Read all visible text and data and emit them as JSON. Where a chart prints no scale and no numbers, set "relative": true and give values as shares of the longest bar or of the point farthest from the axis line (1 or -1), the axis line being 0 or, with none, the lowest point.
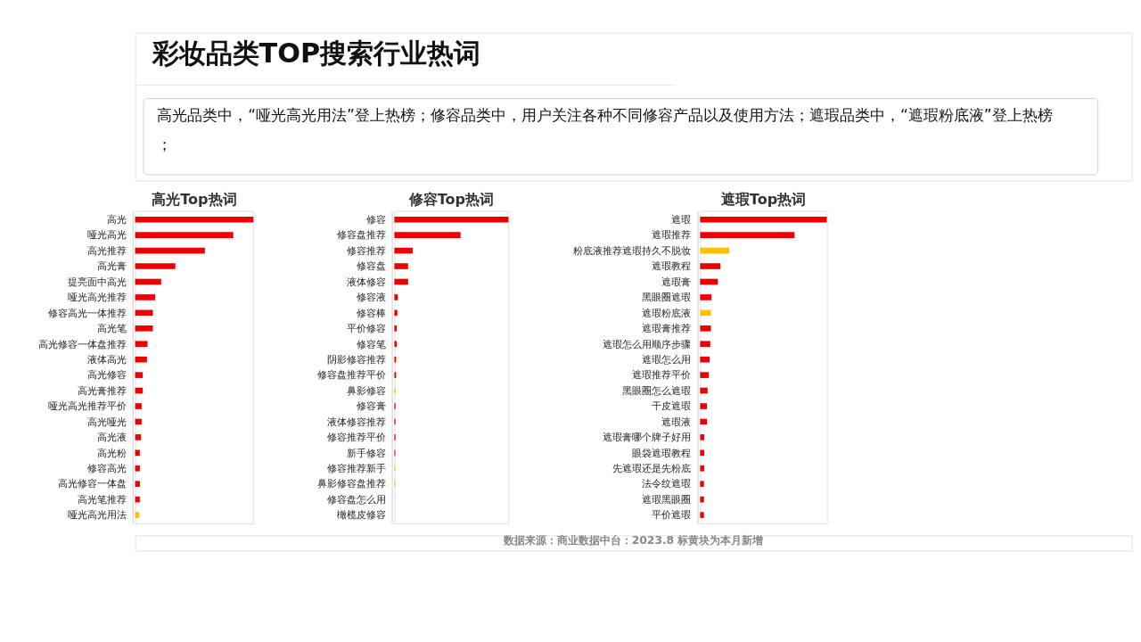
{
  "chart_data": [
    {
      "type": "other",
      "title": "彩妆品类TOP搜索行业热词",
      "subtitle": "高光品类中，“哑光高光用法”登上热榜；修容品类中，用户关注各种不同修容产品以及使用方法；遮瑕品类中，“遮瑕粉底液”登上热榜；",
      "annotations": [
        "数据来源：商业数据中台：2023.8 标黄块为本月新增"
      ]
    },
    {
      "type": "bar",
      "orientation": "horizontal",
      "relative": true,
      "title": "高光Top热词",
      "categories": [
        "高光",
        "哑光高光",
        "高光推荐",
        "高光膏",
        "提亮面中高光",
        "哑光高光推荐",
        "修容高光一体推荐",
        "高光笔",
        "高光修容一体盘推荐",
        "液体高光",
        "高光修容",
        "高光膏推荐",
        "哑光高光推荐平价",
        "高光哑光",
        "高光液",
        "高光粉",
        "修容高光",
        "高光修容一体盘",
        "高光笔推荐",
        "哑光高光用法"
      ],
      "values": [
        1,
        0.83,
        0.59,
        0.34,
        0.22,
        0.17,
        0.15,
        0.15,
        0.105,
        0.1,
        0.065,
        0.065,
        0.055,
        0.055,
        0.05,
        0.04,
        0.04,
        0.04,
        0.04,
        0.035
      ],
      "colors": [
        "#ee0000",
        "#ee0000",
        "#ee0000",
        "#ee0000",
        "#ee0000",
        "#ee0000",
        "#ee0000",
        "#ee0000",
        "#ee0000",
        "#ee0000",
        "#ee0000",
        "#ee0000",
        "#ee0000",
        "#ee0000",
        "#ee0000",
        "#ee0000",
        "#ee0000",
        "#ee0000",
        "#ee0000",
        "#ffc000"
      ]
    },
    {
      "type": "bar",
      "orientation": "horizontal",
      "relative": true,
      "title": "修容Top热词",
      "categories": [
        "修容",
        "修容盘推荐",
        "修容推荐",
        "修容盘",
        "液体修容",
        "修容液",
        "修容棒",
        "平价修容",
        "修容笔",
        "阴影修容推荐",
        "修容盘推荐平价",
        "鼻影修容",
        "修容膏",
        "液体修容推荐",
        "修容推荐平价",
        "新手修容",
        "修容推荐新手",
        "鼻影修容盘推荐",
        "修容盘怎么用",
        "橄榄皮修容"
      ],
      "values": [
        1,
        0.58,
        0.16,
        0.12,
        0.12,
        0.03,
        0.026,
        0.02,
        0.02,
        0.015,
        0.015,
        0.01,
        0.01,
        0.01,
        0.01,
        0.008,
        0.008,
        0.008,
        null,
        null
      ],
      "colors": [
        "#ee0000",
        "#ee0000",
        "#ee0000",
        "#ee0000",
        "#ee0000",
        "#ee0000",
        "#ee0000",
        "#ee0000",
        "#ee0000",
        "#ee0000",
        "#ee0000",
        "#ffc000",
        "#ee0000",
        "#ee0000",
        "#ee0000",
        "#ee0000",
        "#ffc000",
        "#ffc000",
        "#ee0000",
        "#ee0000"
      ]
    },
    {
      "type": "bar",
      "orientation": "horizontal",
      "relative": true,
      "title": "遮瑕Top热词",
      "categories": [
        "遮瑕",
        "遮瑕推荐",
        "粉底液推荐遮瑕持久不脱妆",
        "遮瑕教程",
        "遮瑕膏",
        "黑眼圈遮瑕",
        "遮瑕粉底液",
        "遮瑕膏推荐",
        "遮瑕怎么用顺序步骤",
        "遮瑕怎么用",
        "遮瑕推荐平价",
        "黑眼圈怎么遮瑕",
        "干皮遮瑕",
        "遮瑕液",
        "遮瑕膏哪个牌子好用",
        "眼袋遮瑕教程",
        "先遮瑕还是先粉底",
        "法令纹遮瑕",
        "遮瑕黑眼圈",
        "平价遮瑕"
      ],
      "values": [
        1,
        0.745,
        0.23,
        0.16,
        0.14,
        0.09,
        0.085,
        0.085,
        0.08,
        0.075,
        0.068,
        0.059,
        0.054,
        0.054,
        0.032,
        0.032,
        0.032,
        0.03,
        0.03,
        0.03
      ],
      "colors": [
        "#ee0000",
        "#ee0000",
        "#ffc000",
        "#ee0000",
        "#ee0000",
        "#ee0000",
        "#ffc000",
        "#ee0000",
        "#ee0000",
        "#ee0000",
        "#ee0000",
        "#ee0000",
        "#ee0000",
        "#ee0000",
        "#ee0000",
        "#ee0000",
        "#ee0000",
        "#ee0000",
        "#ee0000",
        "#ee0000"
      ]
    }
  ]
}
